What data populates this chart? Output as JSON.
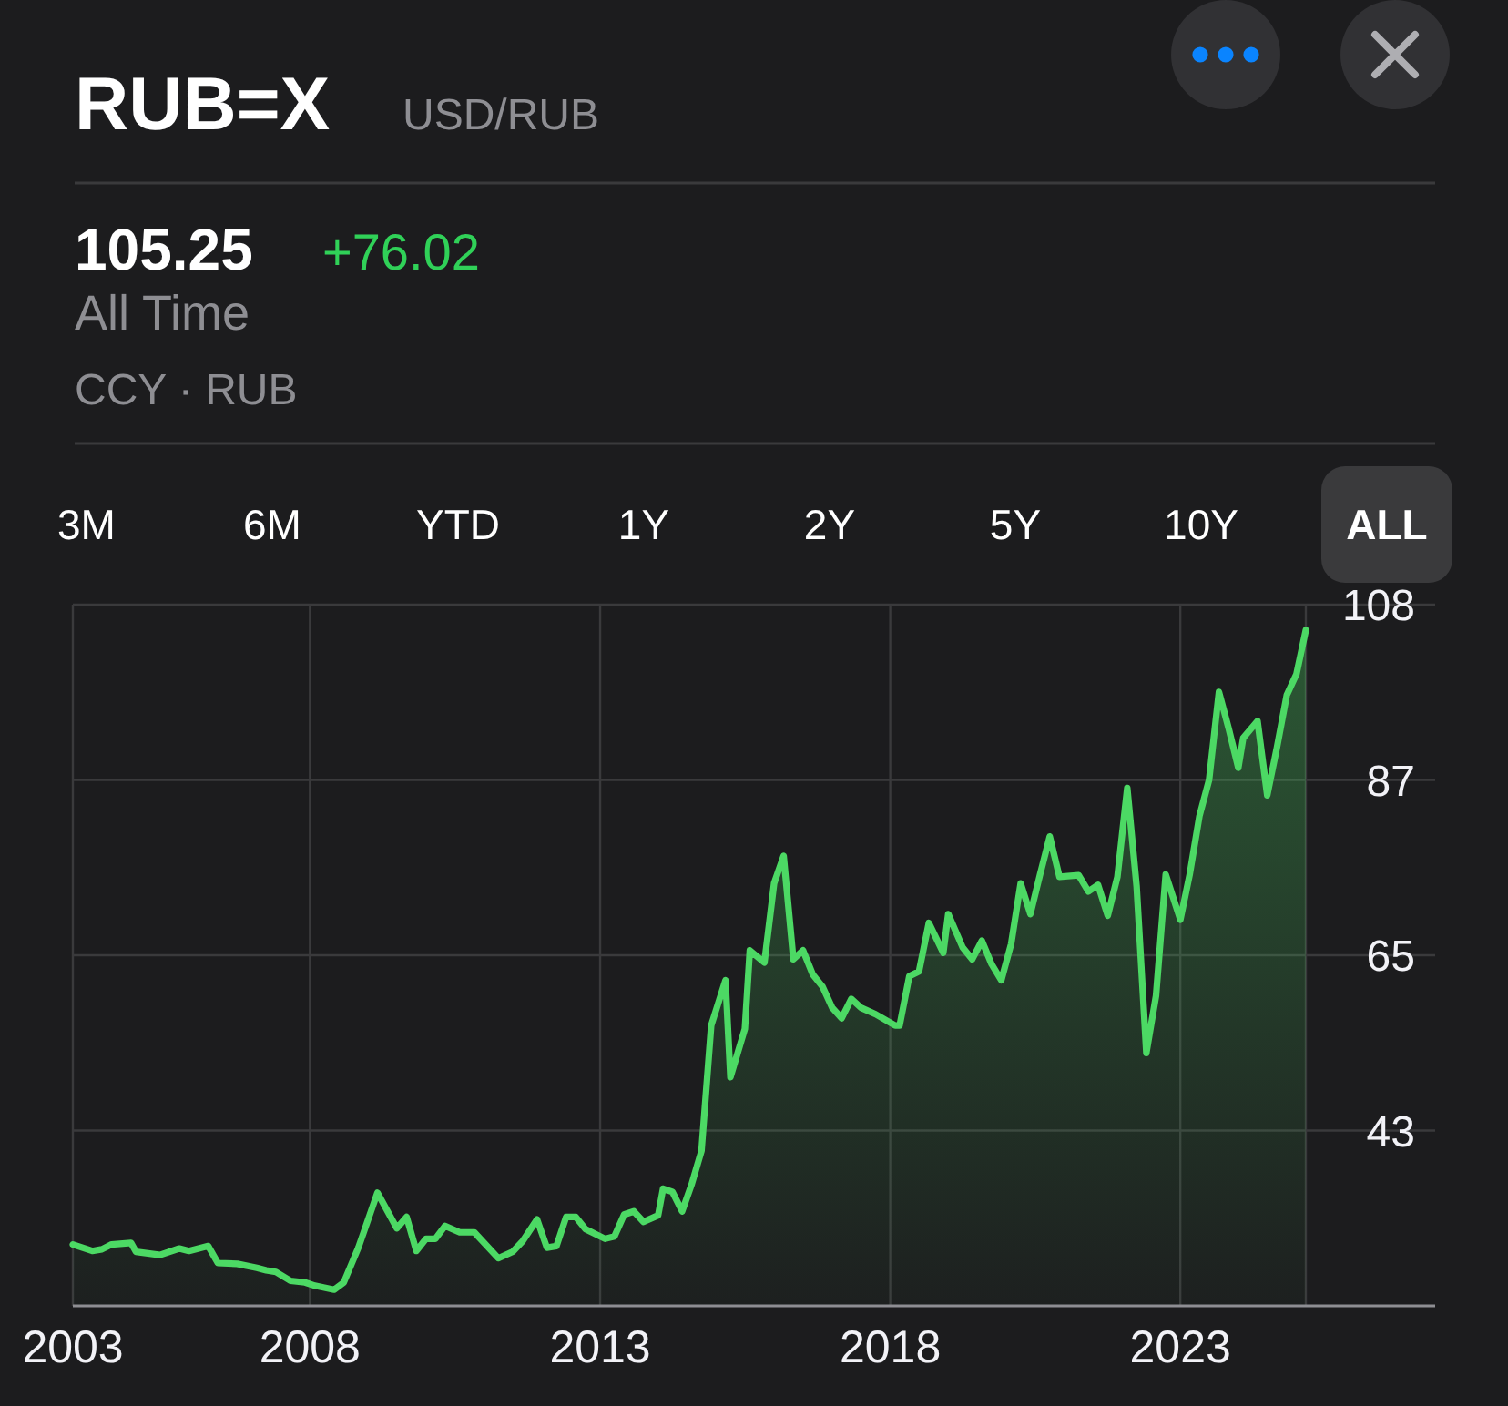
{
  "chart_data": {
    "type": "area",
    "title": "RUB=X",
    "subtitle": "USD/RUB",
    "annotations": [
      "105.25",
      "+76.02",
      "All Time",
      "CCY · RUB",
      "3M",
      "6M",
      "YTD",
      "1Y",
      "2Y",
      "5Y",
      "10Y",
      "ALL"
    ],
    "x": [
      "2003-12",
      "2004-04",
      "2004-06",
      "2004-08",
      "2004-12",
      "2005-01",
      "2005-06",
      "2005-10",
      "2005-12",
      "2006-04",
      "2006-06",
      "2006-10",
      "2007-02",
      "2007-04",
      "2007-06",
      "2007-09",
      "2007-12",
      "2008-02",
      "2008-06",
      "2008-08",
      "2008-11",
      "2009-03",
      "2009-07",
      "2009-09",
      "2009-11",
      "2010-01",
      "2010-03",
      "2010-05",
      "2010-08",
      "2010-11",
      "2011-04",
      "2011-07",
      "2011-09",
      "2011-12",
      "2012-02",
      "2012-04",
      "2012-06",
      "2012-08",
      "2012-10",
      "2013-02",
      "2013-04",
      "2013-06",
      "2013-08",
      "2013-10",
      "2014-01",
      "2014-02",
      "2014-04",
      "2014-06",
      "2014-08",
      "2014-10",
      "2014-12",
      "2015-03",
      "2015-04",
      "2015-07",
      "2015-08",
      "2015-11",
      "2016-01",
      "2016-03",
      "2016-05",
      "2016-07",
      "2016-09",
      "2016-11",
      "2017-01",
      "2017-03",
      "2017-05",
      "2017-07",
      "2017-10",
      "2018-02",
      "2018-03",
      "2018-05",
      "2018-07",
      "2018-09",
      "2018-12",
      "2019-01",
      "2019-04",
      "2019-06",
      "2019-08",
      "2019-10",
      "2019-12",
      "2020-02",
      "2020-04",
      "2020-06",
      "2020-08",
      "2020-10",
      "2020-12",
      "2021-04",
      "2021-06",
      "2021-08",
      "2021-10",
      "2021-12",
      "2022-02",
      "2022-04",
      "2022-06",
      "2022-08",
      "2022-10",
      "2023-01",
      "2023-03",
      "2023-05",
      "2023-07",
      "2023-09",
      "2023-11",
      "2024-01",
      "2024-02",
      "2024-05",
      "2024-07",
      "2024-09",
      "2024-11",
      "2025-01",
      "2025-03"
    ],
    "values": [
      29.2,
      28.4,
      28.6,
      29.2,
      29.4,
      28.3,
      27.9,
      28.7,
      28.4,
      29.0,
      26.9,
      26.8,
      26.3,
      26.0,
      25.8,
      24.7,
      24.5,
      24.1,
      23.6,
      24.5,
      28.8,
      35.6,
      31.2,
      32.6,
      28.4,
      29.9,
      29.9,
      31.5,
      30.7,
      30.7,
      27.5,
      28.3,
      29.6,
      32.3,
      28.8,
      29.0,
      32.6,
      32.6,
      31.1,
      29.9,
      30.2,
      32.9,
      33.3,
      32.0,
      32.8,
      36.1,
      35.7,
      33.3,
      36.7,
      40.8,
      56.3,
      61.9,
      49.9,
      55.9,
      65.6,
      64.1,
      73.9,
      77.3,
      64.5,
      65.6,
      62.6,
      61.1,
      58.5,
      57.2,
      59.6,
      58.5,
      57.7,
      56.3,
      56.3,
      62.4,
      63.0,
      69.0,
      65.3,
      70.1,
      66.0,
      64.5,
      66.8,
      63.9,
      61.9,
      66.4,
      73.9,
      70.1,
      75.0,
      79.7,
      74.7,
      74.9,
      72.9,
      73.7,
      69.9,
      74.7,
      85.7,
      73.5,
      52.9,
      60.0,
      75.0,
      69.4,
      75.0,
      82.2,
      86.7,
      97.6,
      93.1,
      88.2,
      91.9,
      94.0,
      84.8,
      90.8,
      97.2,
      99.8,
      105.25
    ],
    "color": "#4cd964",
    "xlim": [
      "2003-12",
      "2025-03"
    ],
    "xticks": [
      {
        "value": "2003-12",
        "label": "2003"
      },
      "2008",
      "2013",
      "2018",
      "2023"
    ],
    "ylim": [
      21.6,
      108.4
    ],
    "yticks": [
      {
        "value": 108.4,
        "label": "108"
      },
      {
        "value": 86.7,
        "label": "87"
      },
      65,
      {
        "value": 43.3,
        "label": "43"
      }
    ],
    "grid": true
  }
}
